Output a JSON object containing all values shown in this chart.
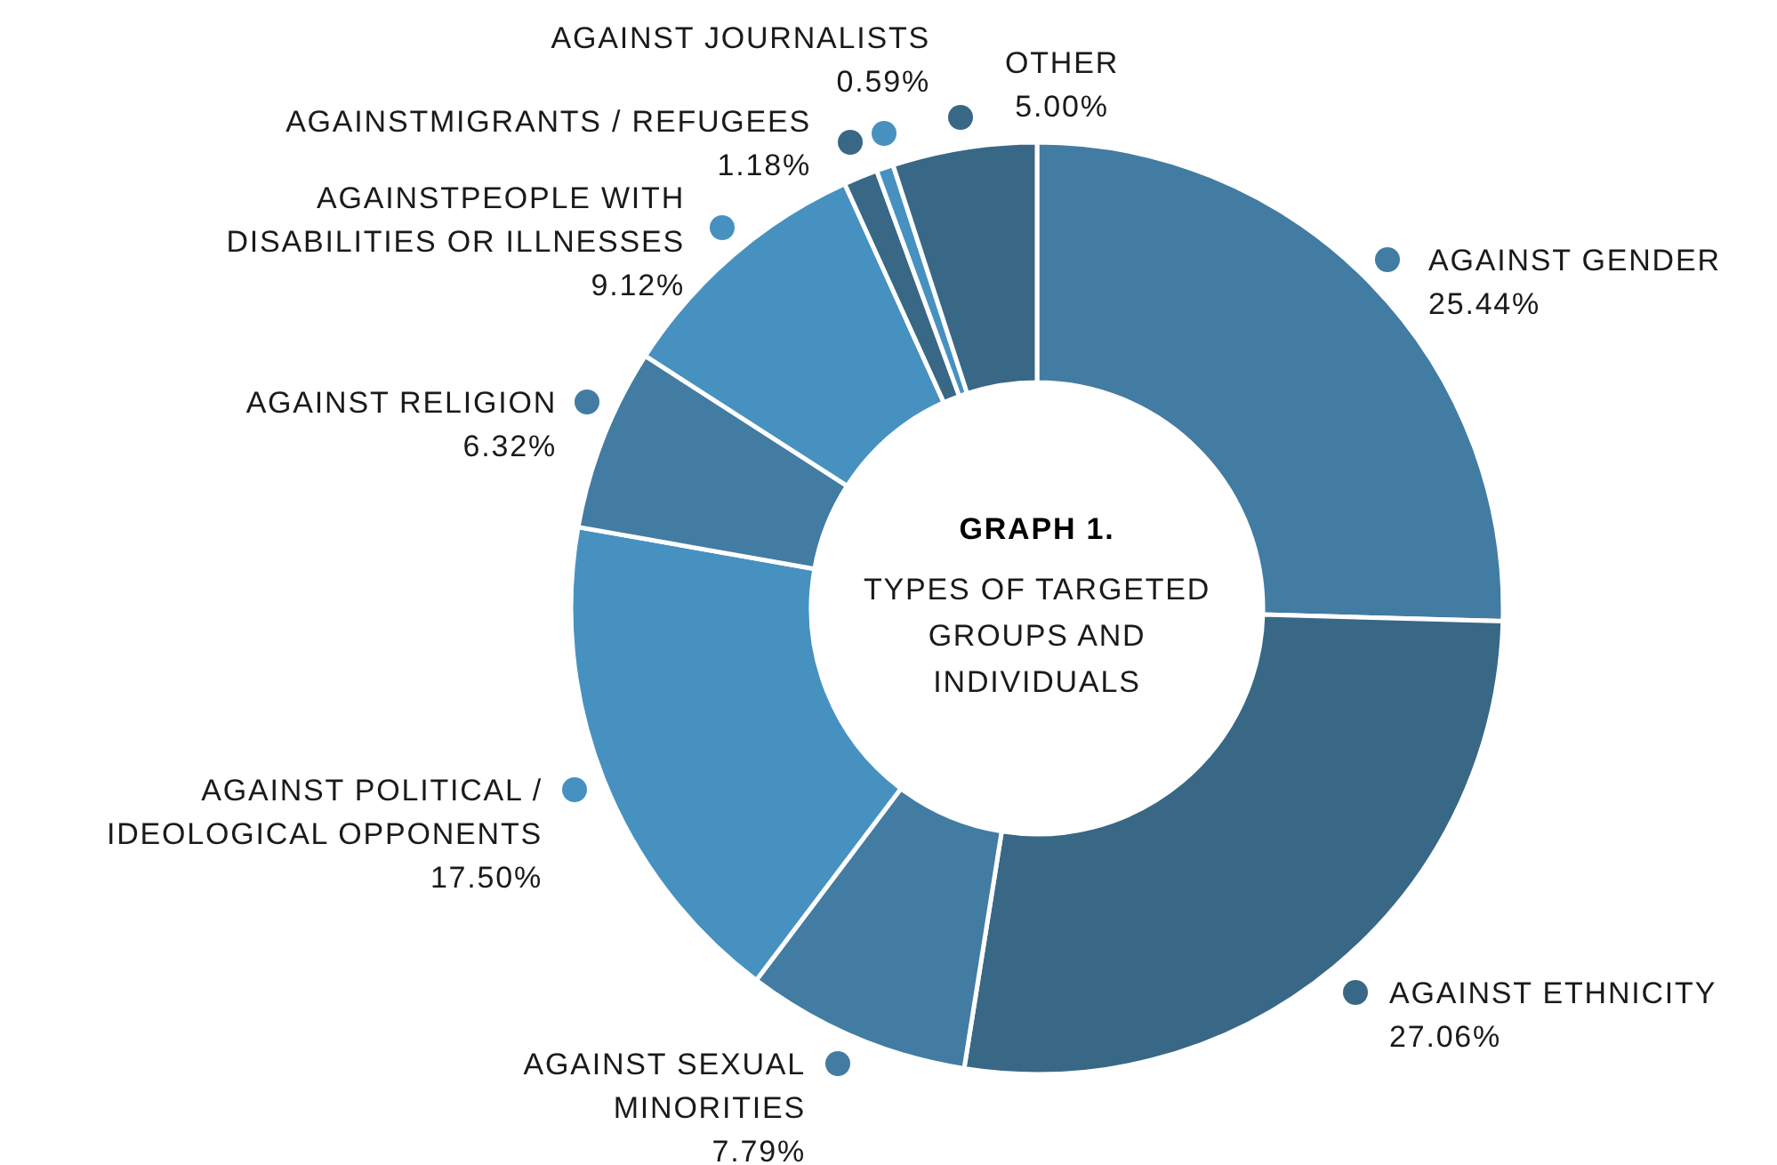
{
  "chart_data": {
    "type": "donut",
    "legend": "left",
    "title": "GRAPH 1.",
    "subtitle": "TYPES OF TARGETED\nGROUPS AND\nINDIVIDUALS",
    "categories": [
      "AGAINST GENDER",
      "AGAINST ETHNICITY",
      "AGAINST SEXUAL\nMINORITIES",
      "AGAINST POLITICAL /\nIDEOLOGICAL OPPONENTS",
      "AGAINST RELIGION",
      "AGAINSTPEOPLE WITH\nDISABILITIES OR ILLNESSES",
      "AGAINSTMIGRANTS / REFUGEES",
      "AGAINST JOURNALISTS",
      "OTHER"
    ],
    "values": [
      25.44,
      27.06,
      7.79,
      17.5,
      6.32,
      9.12,
      1.18,
      0.59,
      5.0
    ],
    "value_labels": [
      "25.44%",
      "27.06%",
      "7.79%",
      "17.50%",
      "6.32%",
      "9.12%",
      "1.18%",
      "0.59%",
      "5.00%"
    ],
    "colors": [
      "#427ca3",
      "#386886",
      "#427ca3",
      "#4791c0",
      "#427ca3",
      "#4791c0",
      "#386886",
      "#4791c0",
      "#386886"
    ]
  }
}
